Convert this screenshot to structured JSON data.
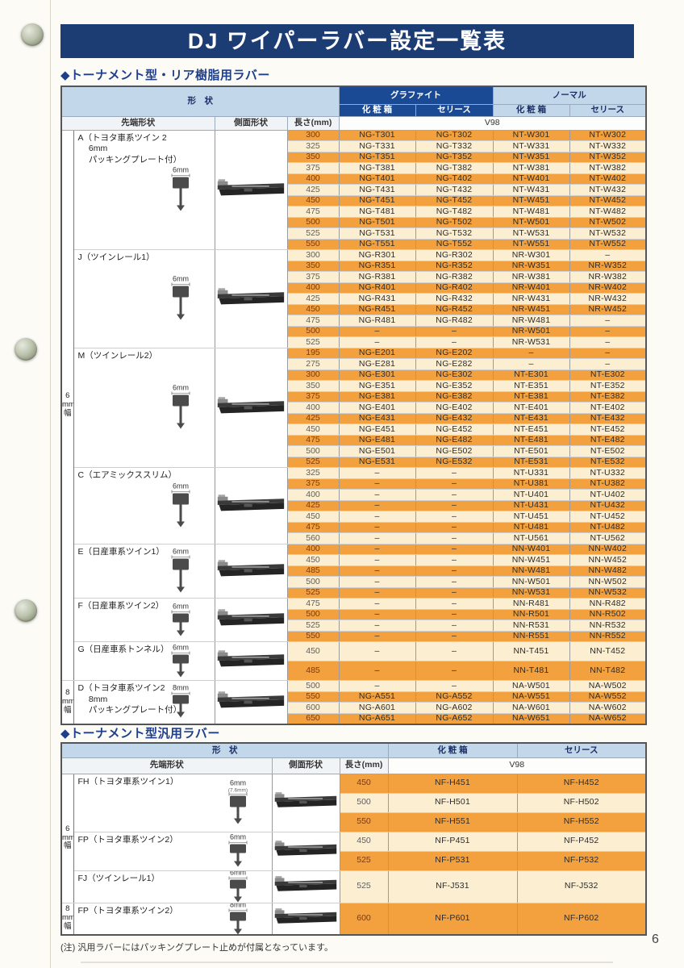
{
  "page": {
    "title": "DJ ワイパーラバー設定一覧表",
    "page_number": "6",
    "note": "(注) 汎用ラバーにはパッキングプレート止めが付属となっています。"
  },
  "colors": {
    "title_bar_navy": "#1c3c74",
    "header_navy": "#1a4a94",
    "header_light_blue": "#c2d7ea",
    "row_orange": "#f2a13e",
    "row_cream": "#fceed0",
    "section_title_blue": "#1d3f8c"
  },
  "icons": {
    "tip_shape": "tip-cross-section-diagram",
    "side_shape": "blade-side-photo",
    "binder_hole": "binder-hole"
  },
  "table1": {
    "section_title": "◆トーナメント型・リア樹脂用ラバー",
    "headers": {
      "shape": "形　状",
      "graphite": "グラファイト",
      "normal": "ノーマル",
      "box": "化 粧 箱",
      "series": "セリース",
      "box2": "化 粧 箱",
      "series2": "セリース",
      "tip": "先端形状",
      "side": "側面形状",
      "length": "長さ(mm)",
      "model": "V98"
    },
    "width_groups": [
      {
        "lines": [
          "6",
          "mm",
          "幅"
        ],
        "sections": [
          0,
          1,
          2,
          3,
          4,
          5,
          6
        ]
      },
      {
        "lines": [
          "8",
          "mm",
          "幅"
        ],
        "sections": [
          7
        ]
      }
    ],
    "sections": [
      {
        "title_lines": [
          "A（トヨタ車系ツイン 2",
          "　 6mm",
          "　 パッキングプレート付）"
        ],
        "dim": "6mm",
        "tall": false,
        "rows": [
          [
            "300",
            "NG-T301",
            "NG-T302",
            "NT-W301",
            "NT-W302",
            "o"
          ],
          [
            "325",
            "NG-T331",
            "NG-T332",
            "NT-W331",
            "NT-W332",
            "c"
          ],
          [
            "350",
            "NG-T351",
            "NG-T352",
            "NT-W351",
            "NT-W352",
            "o"
          ],
          [
            "375",
            "NG-T381",
            "NG-T382",
            "NT-W381",
            "NT-W382",
            "c"
          ],
          [
            "400",
            "NG-T401",
            "NG-T402",
            "NT-W401",
            "NT-W402",
            "o"
          ],
          [
            "425",
            "NG-T431",
            "NG-T432",
            "NT-W431",
            "NT-W432",
            "c"
          ],
          [
            "450",
            "NG-T451",
            "NG-T452",
            "NT-W451",
            "NT-W452",
            "o"
          ],
          [
            "475",
            "NG-T481",
            "NG-T482",
            "NT-W481",
            "NT-W482",
            "c"
          ],
          [
            "500",
            "NG-T501",
            "NG-T502",
            "NT-W501",
            "NT-W502",
            "o"
          ],
          [
            "525",
            "NG-T531",
            "NG-T532",
            "NT-W531",
            "NT-W532",
            "c"
          ],
          [
            "550",
            "NG-T551",
            "NG-T552",
            "NT-W551",
            "NT-W552",
            "o"
          ]
        ]
      },
      {
        "title_lines": [
          "J（ツインレール1）"
        ],
        "dim": "6mm",
        "tall": false,
        "rows": [
          [
            "300",
            "NG-R301",
            "NG-R302",
            "NR-W301",
            "–",
            "c"
          ],
          [
            "350",
            "NG-R351",
            "NG-R352",
            "NR-W351",
            "NR-W352",
            "o"
          ],
          [
            "375",
            "NG-R381",
            "NG-R382",
            "NR-W381",
            "NR-W382",
            "c"
          ],
          [
            "400",
            "NG-R401",
            "NG-R402",
            "NR-W401",
            "NR-W402",
            "o"
          ],
          [
            "425",
            "NG-R431",
            "NG-R432",
            "NR-W431",
            "NR-W432",
            "c"
          ],
          [
            "450",
            "NG-R451",
            "NG-R452",
            "NR-W451",
            "NR-W452",
            "o"
          ],
          [
            "475",
            "NG-R481",
            "NG-R482",
            "NR-W481",
            "–",
            "c"
          ],
          [
            "500",
            "–",
            "–",
            "NR-W501",
            "–",
            "o"
          ],
          [
            "525",
            "–",
            "–",
            "NR-W531",
            "–",
            "c"
          ]
        ]
      },
      {
        "title_lines": [
          "M（ツインレール2）"
        ],
        "dim": "6mm",
        "tall": false,
        "rows": [
          [
            "195",
            "NG-E201",
            "NG-E202",
            "–",
            "–",
            "o"
          ],
          [
            "275",
            "NG-E281",
            "NG-E282",
            "–",
            "–",
            "c"
          ],
          [
            "300",
            "NG-E301",
            "NG-E302",
            "NT-E301",
            "NT-E302",
            "o"
          ],
          [
            "350",
            "NG-E351",
            "NG-E352",
            "NT-E351",
            "NT-E352",
            "c"
          ],
          [
            "375",
            "NG-E381",
            "NG-E382",
            "NT-E381",
            "NT-E382",
            "o"
          ],
          [
            "400",
            "NG-E401",
            "NG-E402",
            "NT-E401",
            "NT-E402",
            "c"
          ],
          [
            "425",
            "NG-E431",
            "NG-E432",
            "NT-E431",
            "NT-E432",
            "o"
          ],
          [
            "450",
            "NG-E451",
            "NG-E452",
            "NT-E451",
            "NT-E452",
            "c"
          ],
          [
            "475",
            "NG-E481",
            "NG-E482",
            "NT-E481",
            "NT-E482",
            "o"
          ],
          [
            "500",
            "NG-E501",
            "NG-E502",
            "NT-E501",
            "NT-E502",
            "c"
          ],
          [
            "525",
            "NG-E531",
            "NG-E532",
            "NT-E531",
            "NT-E532",
            "o"
          ]
        ]
      },
      {
        "title_lines": [
          "C（エアミックススリム）"
        ],
        "dim": "6mm",
        "tall": false,
        "rows": [
          [
            "325",
            "–",
            "–",
            "NT-U331",
            "NT-U332",
            "c"
          ],
          [
            "375",
            "–",
            "–",
            "NT-U381",
            "NT-U382",
            "o"
          ],
          [
            "400",
            "–",
            "–",
            "NT-U401",
            "NT-U402",
            "c"
          ],
          [
            "425",
            "–",
            "–",
            "NT-U431",
            "NT-U432",
            "o"
          ],
          [
            "450",
            "–",
            "–",
            "NT-U451",
            "NT-U452",
            "c"
          ],
          [
            "475",
            "–",
            "–",
            "NT-U481",
            "NT-U482",
            "o"
          ],
          [
            "560",
            "–",
            "–",
            "NT-U561",
            "NT-U562",
            "c"
          ]
        ]
      },
      {
        "title_lines": [
          "E（日産車系ツイン1）"
        ],
        "dim": "6mm",
        "tall": false,
        "rows": [
          [
            "400",
            "–",
            "–",
            "NN-W401",
            "NN-W402",
            "o"
          ],
          [
            "450",
            "–",
            "–",
            "NN-W451",
            "NN-W452",
            "c"
          ],
          [
            "485",
            "–",
            "–",
            "NN-W481",
            "NN-W482",
            "o"
          ],
          [
            "500",
            "–",
            "–",
            "NN-W501",
            "NN-W502",
            "c"
          ],
          [
            "525",
            "–",
            "–",
            "NN-W531",
            "NN-W532",
            "o"
          ]
        ]
      },
      {
        "title_lines": [
          "F（日産車系ツイン2）"
        ],
        "dim": "6mm",
        "tall": false,
        "rows": [
          [
            "475",
            "–",
            "–",
            "NN-R481",
            "NN-R482",
            "c"
          ],
          [
            "500",
            "–",
            "–",
            "NN-R501",
            "NN-R502",
            "o"
          ],
          [
            "525",
            "–",
            "–",
            "NN-R531",
            "NN-R532",
            "c"
          ],
          [
            "550",
            "–",
            "–",
            "NN-R551",
            "NN-R552",
            "o"
          ]
        ]
      },
      {
        "title_lines": [
          "G（日産車系トンネル）"
        ],
        "dim": "6mm",
        "tall": true,
        "rows": [
          [
            "450",
            "–",
            "–",
            "NN-T451",
            "NN-T452",
            "c"
          ],
          [
            "485",
            "–",
            "–",
            "NN-T481",
            "NN-T482",
            "o"
          ]
        ]
      },
      {
        "title_lines": [
          "D（トヨタ車系ツイン2",
          "　 8mm",
          "　 パッキングプレート付）"
        ],
        "dim": "8mm",
        "tall": false,
        "rows": [
          [
            "500",
            "–",
            "–",
            "NA-W501",
            "NA-W502",
            "c"
          ],
          [
            "550",
            "NG-A551",
            "NG-A552",
            "NA-W551",
            "NA-W552",
            "o"
          ],
          [
            "600",
            "NG-A601",
            "NG-A602",
            "NA-W601",
            "NA-W602",
            "c"
          ],
          [
            "650",
            "NG-A651",
            "NG-A652",
            "NA-W651",
            "NA-W652",
            "o"
          ]
        ]
      }
    ]
  },
  "table2": {
    "section_title": "◆トーナメント型汎用ラバー",
    "headers": {
      "shape": "形　状",
      "box": "化 粧 箱",
      "series": "セリース",
      "tip": "先端形状",
      "side": "側面形状",
      "length": "長さ(mm)",
      "model": "V98"
    },
    "width_groups": [
      {
        "lines": [
          "6",
          "mm",
          "幅"
        ],
        "sections": [
          0,
          1,
          2
        ]
      },
      {
        "lines": [
          "8",
          "mm",
          "幅"
        ],
        "sections": [
          3
        ]
      }
    ],
    "sections": [
      {
        "title": "FH（トヨタ車系ツイン1）",
        "dim": "6mm",
        "dim2": "(7.6mm)",
        "tall": false,
        "rows": [
          [
            "450",
            "NF-H451",
            "NF-H452",
            "o"
          ],
          [
            "500",
            "NF-H501",
            "NF-H502",
            "c"
          ],
          [
            "550",
            "NF-H551",
            "NF-H552",
            "o"
          ]
        ]
      },
      {
        "title": "FP（トヨタ車系ツイン2）",
        "dim": "6mm",
        "tall": false,
        "rows": [
          [
            "450",
            "NF-P451",
            "NF-P452",
            "c"
          ],
          [
            "525",
            "NF-P531",
            "NF-P532",
            "o"
          ]
        ]
      },
      {
        "title": "FJ（ツインレール1）",
        "dim": "6mm",
        "tall": true,
        "rows": [
          [
            "525",
            "NF-J531",
            "NF-J532",
            "c"
          ]
        ]
      },
      {
        "title": "FP（トヨタ車系ツイン2）",
        "dim": "8mm",
        "tall": true,
        "rows": [
          [
            "600",
            "NF-P601",
            "NF-P602",
            "o"
          ]
        ]
      }
    ]
  }
}
